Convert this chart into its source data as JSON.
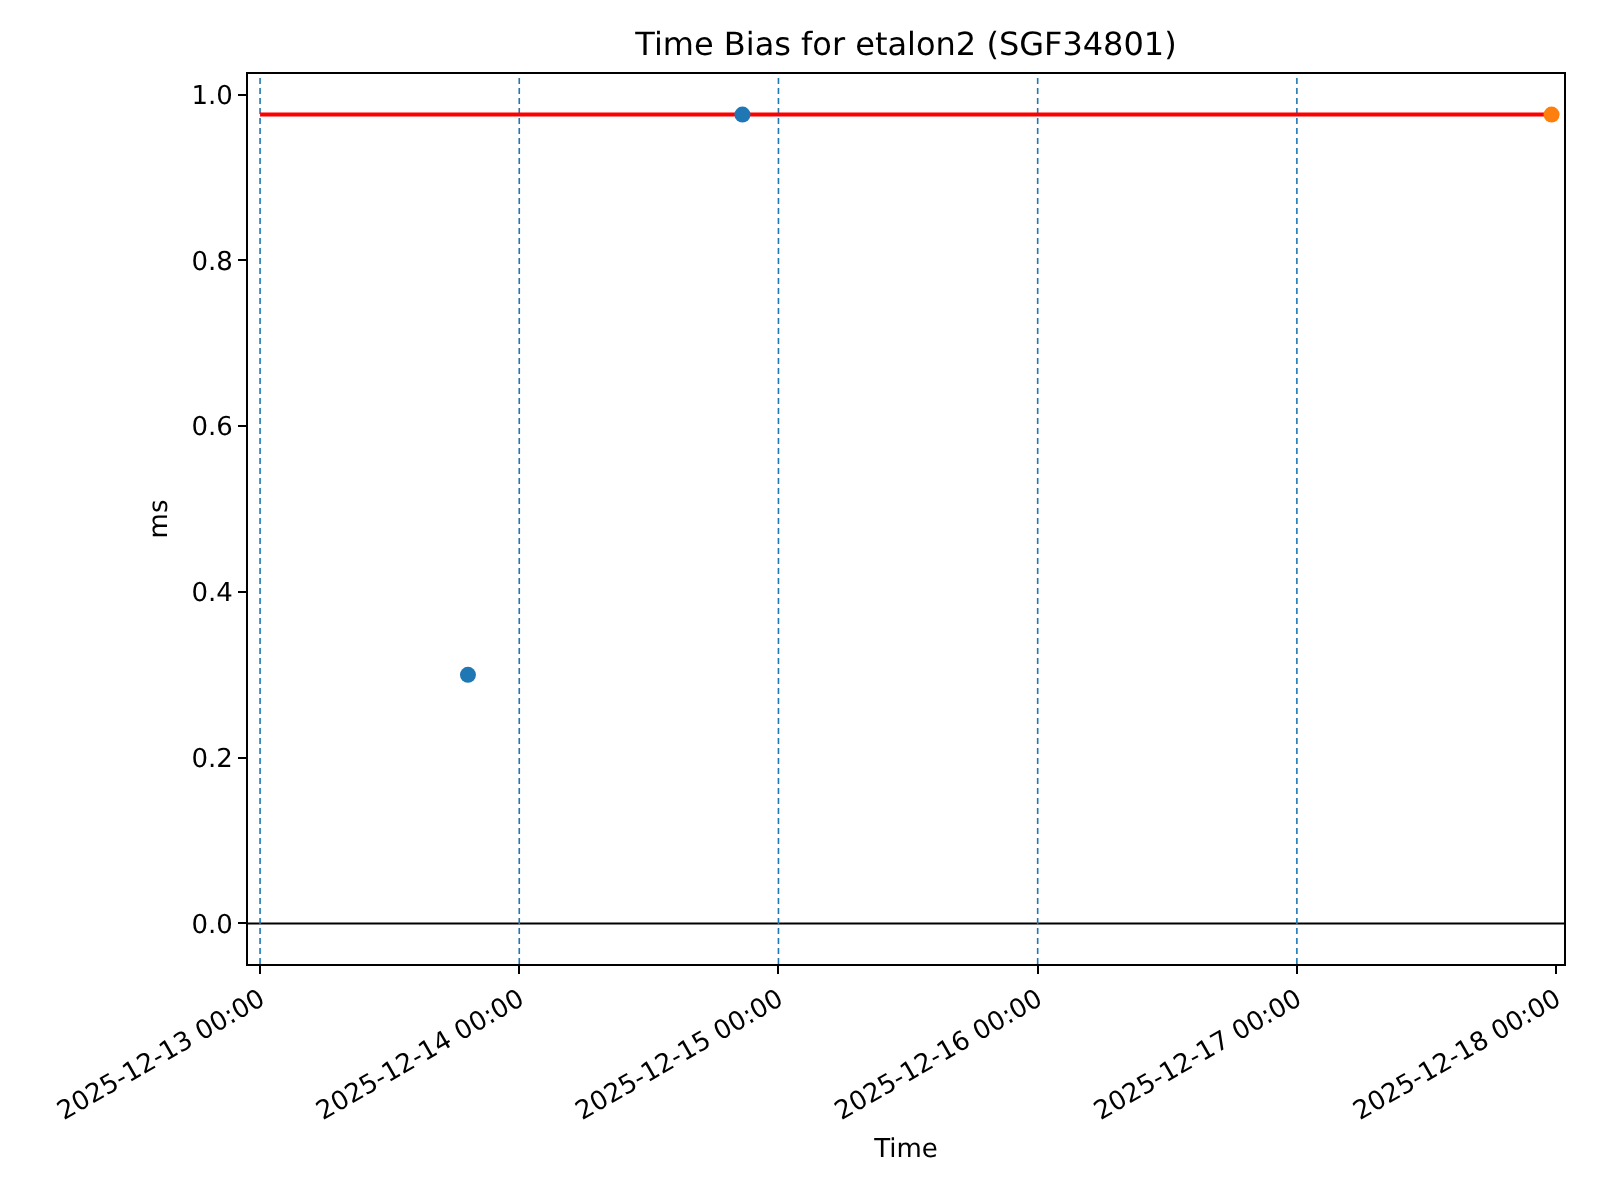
{
  "chart_data": {
    "type": "scatter",
    "title": "Time Bias for etalon2 (SGF34801)",
    "xlabel": "Time",
    "ylabel": "ms",
    "series": [
      {
        "type": "line",
        "marker": "none",
        "color": "#ff0000",
        "x": [
          "2025-12-13T00:00",
          "2025-12-17T23:35"
        ],
        "values": [
          0.976,
          0.976
        ]
      },
      {
        "color": "#1f77b4",
        "x": [
          "2025-12-13T19:15",
          "2025-12-14T20:40"
        ],
        "values": [
          0.3,
          0.976
        ]
      },
      {
        "color": "#ff7f0e",
        "x": [
          "2025-12-17T23:35"
        ],
        "values": [
          0.976
        ]
      }
    ],
    "marker": "circle",
    "xlim": [
      "2025-12-12T22:53",
      "2025-12-18T00:44"
    ],
    "xticks": [
      {
        "value": "2025-12-13T00:00",
        "label": "2025-12-13 00:00"
      },
      {
        "value": "2025-12-14T00:00",
        "label": "2025-12-14 00:00"
      },
      {
        "value": "2025-12-15T00:00",
        "label": "2025-12-15 00:00"
      },
      {
        "value": "2025-12-16T00:00",
        "label": "2025-12-16 00:00"
      },
      {
        "value": "2025-12-17T00:00",
        "label": "2025-12-17 00:00"
      },
      {
        "value": "2025-12-18T00:00",
        "label": "2025-12-18 00:00"
      }
    ],
    "ylim": [
      -0.049,
      1.025
    ],
    "yticks": [
      {
        "value": 0,
        "label": "0.0"
      },
      0.2,
      0.4,
      0.6,
      0.8,
      {
        "value": 1,
        "label": "1.0"
      }
    ],
    "ref_lines": [
      {
        "axis": "y",
        "value": 0,
        "color": "#000000",
        "line_style": "solid"
      },
      {
        "axis": "x",
        "value": "2025-12-13T00:00",
        "color": "#1f77b4",
        "line_style": "dashed"
      },
      {
        "axis": "x",
        "value": "2025-12-14T00:00",
        "color": "#1f77b4",
        "line_style": "dashed"
      },
      {
        "axis": "x",
        "value": "2025-12-15T00:00",
        "color": "#1f77b4",
        "line_style": "dashed"
      },
      {
        "axis": "x",
        "value": "2025-12-16T00:00",
        "color": "#1f77b4",
        "line_style": "dashed"
      },
      {
        "axis": "x",
        "value": "2025-12-17T00:00",
        "color": "#1f77b4",
        "line_style": "dashed"
      }
    ]
  }
}
